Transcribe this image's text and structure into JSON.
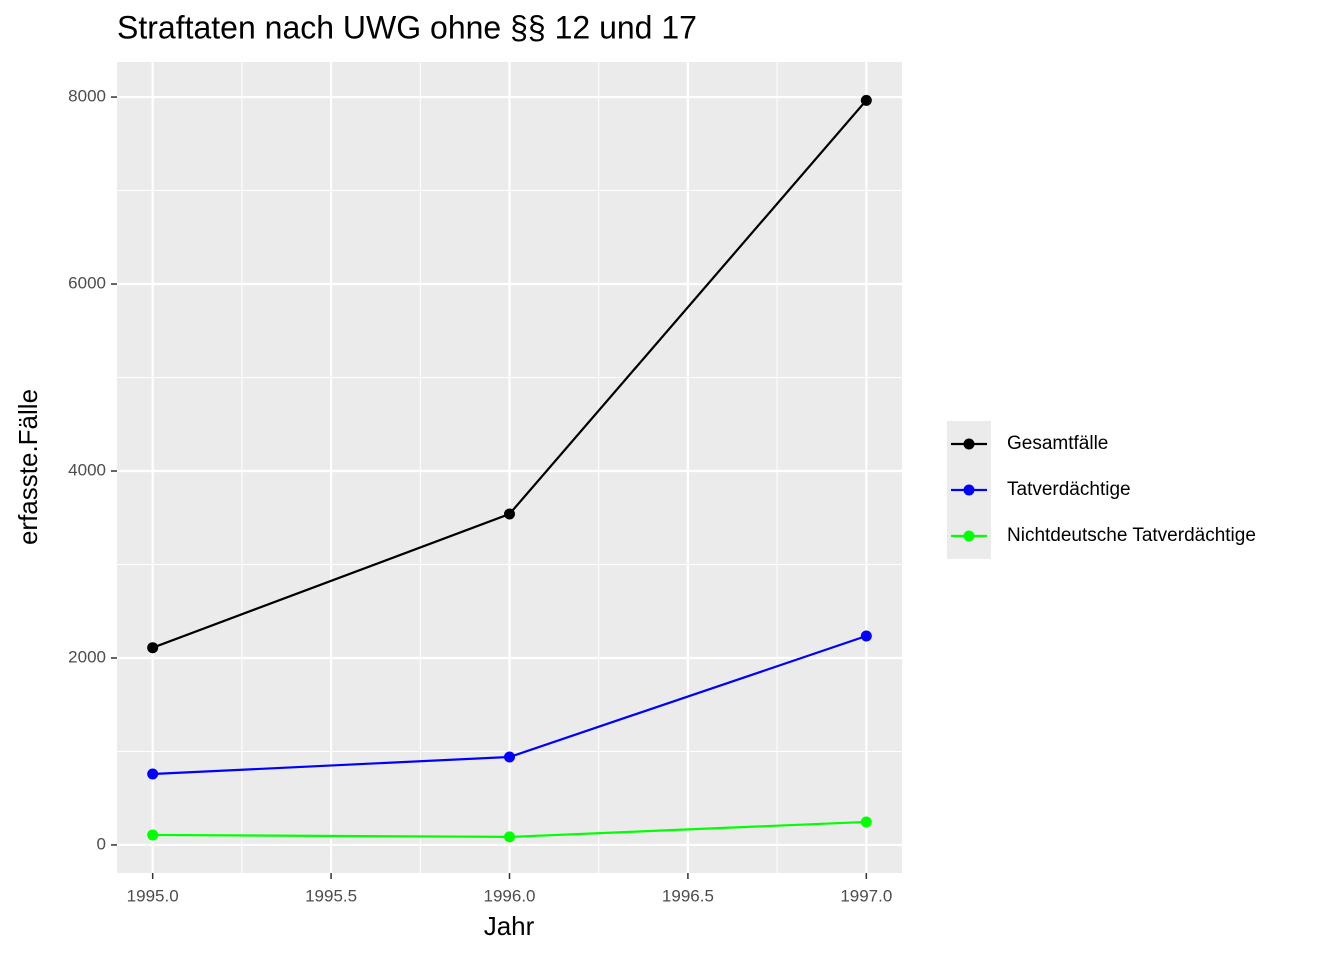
{
  "chart_data": {
    "type": "line",
    "title": "Straftaten nach UWG ohne §§ 12 und 17",
    "x_label": "Jahr",
    "y_label": "erfasste.Fälle",
    "x": [
      1995,
      1996,
      1997
    ],
    "series": [
      {
        "name": "Gesamtfälle",
        "color": "#000000",
        "values": [
          2110,
          3540,
          7965
        ]
      },
      {
        "name": "Tatverdächtige",
        "color": "#0000ff",
        "values": [
          759,
          941,
          2235
        ]
      },
      {
        "name": "Nichtdeutsche Tatverdächtige",
        "color": "#00ff00",
        "values": [
          107,
          86,
          246
        ]
      }
    ],
    "xlim": [
      1994.9,
      1997.1
    ],
    "xticks": [
      {
        "value": 1995,
        "label": "1995.0"
      },
      {
        "value": 1995.5,
        "label": "1995.5"
      },
      {
        "value": 1996,
        "label": "1996.0"
      },
      {
        "value": 1996.5,
        "label": "1996.5"
      },
      {
        "value": 1997,
        "label": "1997.0"
      }
    ],
    "ylim": [
      -300,
      8375
    ],
    "yticks": [
      0,
      2000,
      4000,
      6000,
      8000
    ],
    "grid": true,
    "legend": "right"
  }
}
